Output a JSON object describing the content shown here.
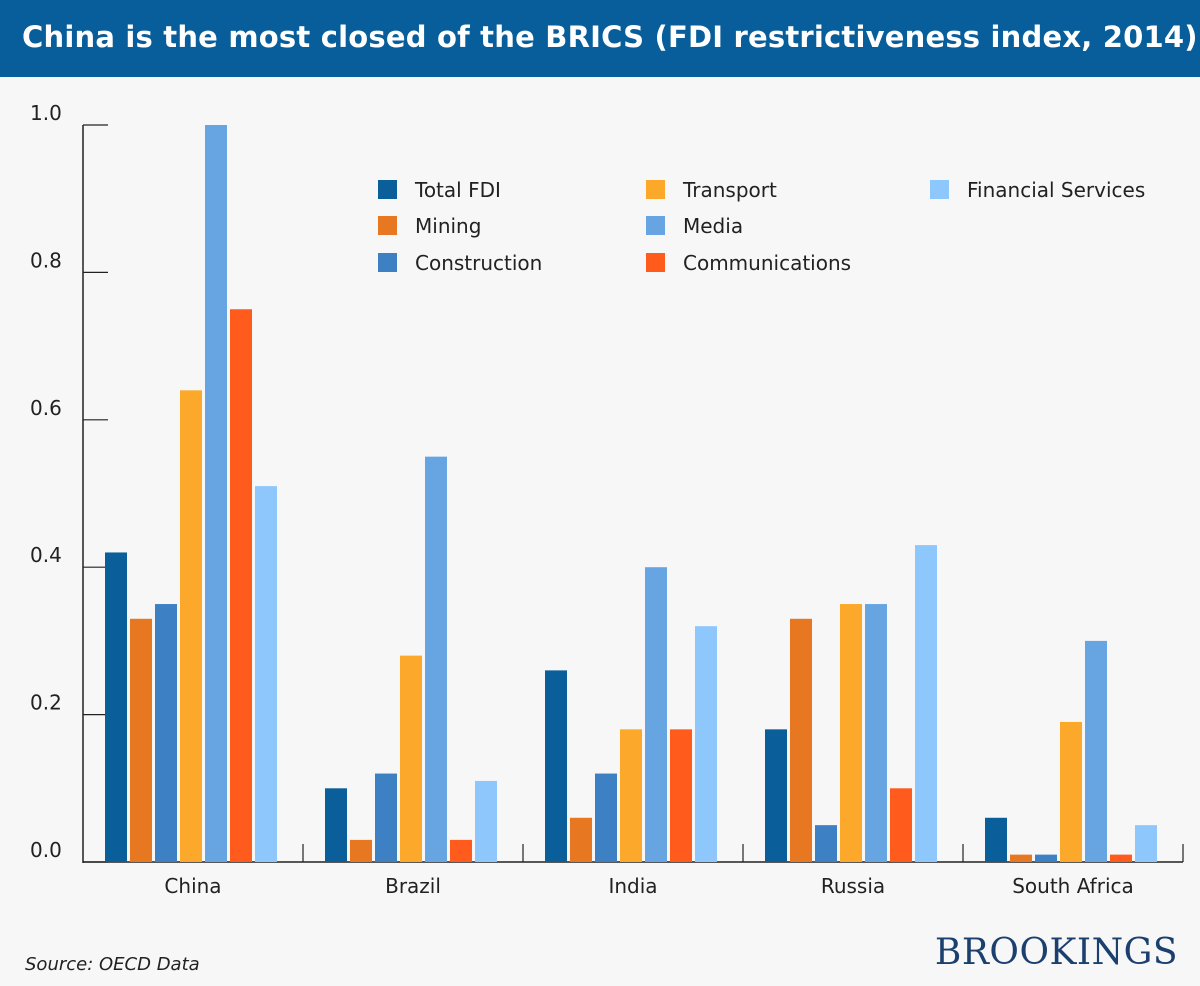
{
  "header": {
    "title": "China is the most closed of the BRICS (FDI restrictiveness index, 2014)"
  },
  "footer": {
    "source": "Source: OECD Data",
    "brand": "BROOKINGS"
  },
  "chart_data": {
    "type": "bar",
    "title": "China is the most closed of the BRICS (FDI restrictiveness index, 2014)",
    "xlabel": "",
    "ylabel": "",
    "ylim": [
      0,
      1.0
    ],
    "yticks": [
      "0.0",
      "0.2",
      "0.4",
      "0.6",
      "0.8",
      "1.0"
    ],
    "grid": false,
    "legend_position": "top-right",
    "categories": [
      "China",
      "Brazil",
      "India",
      "Russia",
      "South Africa"
    ],
    "series": [
      {
        "name": "Total FDI",
        "color": "#0a5f9a",
        "values": [
          0.42,
          0.1,
          0.26,
          0.18,
          0.06
        ]
      },
      {
        "name": "Mining",
        "color": "#e87722",
        "values": [
          0.33,
          0.03,
          0.06,
          0.33,
          0.01
        ]
      },
      {
        "name": "Construction",
        "color": "#3d80c3",
        "values": [
          0.35,
          0.12,
          0.12,
          0.05,
          0.01
        ]
      },
      {
        "name": "Transport",
        "color": "#fca82b",
        "values": [
          0.64,
          0.28,
          0.18,
          0.35,
          0.19
        ]
      },
      {
        "name": "Media",
        "color": "#66a5e2",
        "values": [
          1.0,
          0.55,
          0.4,
          0.35,
          0.3
        ]
      },
      {
        "name": "Communications",
        "color": "#ff5b1c",
        "values": [
          0.75,
          0.03,
          0.18,
          0.1,
          0.01
        ]
      },
      {
        "name": "Financial Services",
        "color": "#8ec7fb",
        "values": [
          0.51,
          0.11,
          0.32,
          0.43,
          0.05
        ]
      }
    ]
  }
}
